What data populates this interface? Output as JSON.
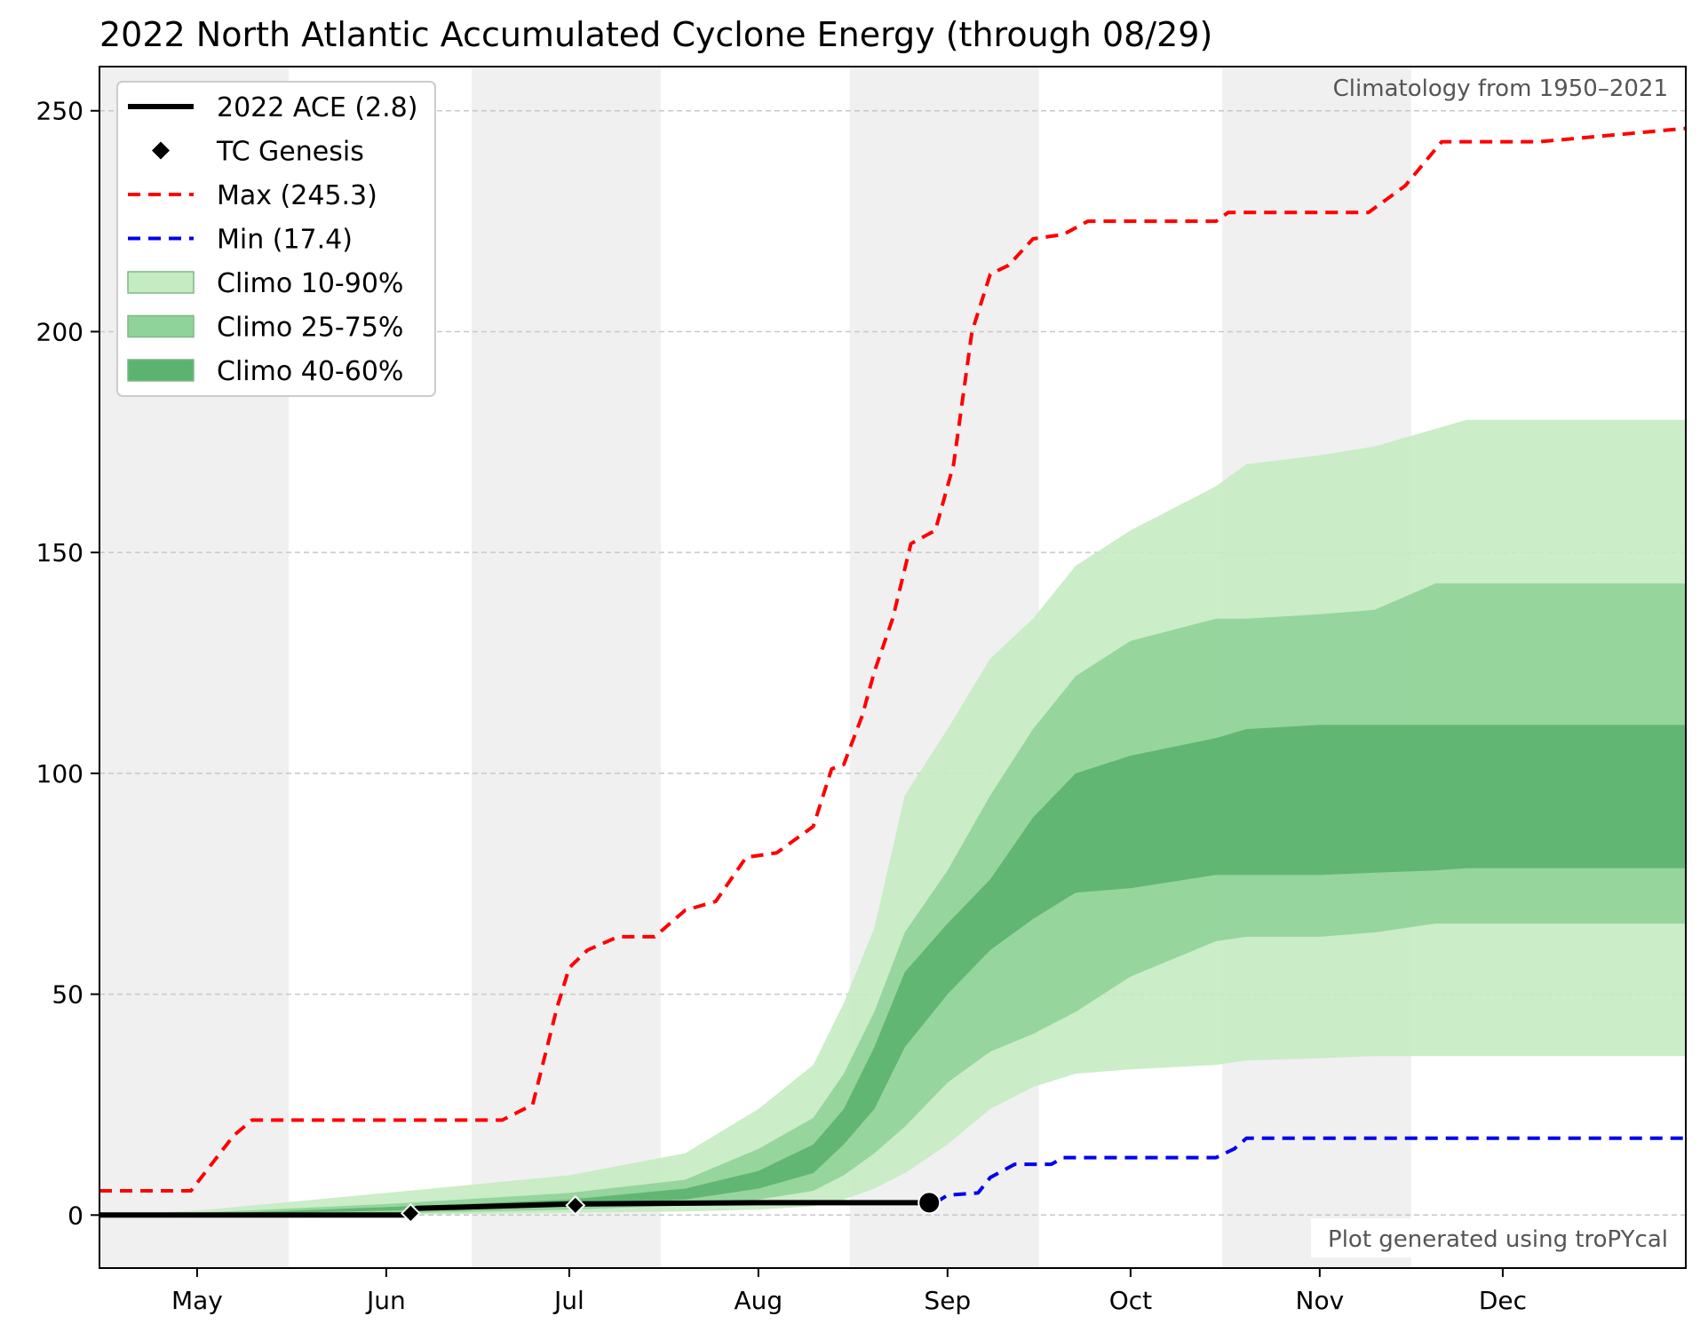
{
  "chart_data": {
    "type": "line",
    "title": "2022 North Atlantic Accumulated Cyclone Energy (through 08/29)",
    "xlabel": "",
    "ylabel": "",
    "x_range": [
      "04-15",
      "12-31"
    ],
    "ylim": [
      -12,
      260
    ],
    "y_ticks": [
      0,
      50,
      100,
      150,
      200,
      250
    ],
    "y_tick_labels": [
      "0",
      "50",
      "100",
      "150",
      "200",
      "250"
    ],
    "x_ticks": [
      "05-01",
      "06-01",
      "07-01",
      "08-01",
      "09-01",
      "10-01",
      "11-01",
      "12-01"
    ],
    "x_tick_labels": [
      "May",
      "Jun",
      "Jul",
      "Aug",
      "Sep",
      "Oct",
      "Nov",
      "Dec"
    ],
    "grid": "horizontal dashed",
    "shaded_month_bands": [
      [
        "04-15",
        "05-16"
      ],
      [
        "06-15",
        "07-16"
      ],
      [
        "08-16",
        "09-16"
      ],
      [
        "10-16",
        "11-16"
      ]
    ],
    "annotation_top_right": "Climatology from 1950–2021",
    "annotation_bottom_right": "Plot generated using troPYcal",
    "legend": {
      "placement": "upper-left",
      "entries": [
        {
          "label": "2022 ACE (2.8)",
          "style": "solid-line",
          "color": "#000000"
        },
        {
          "label": "TC Genesis",
          "style": "diamond-marker",
          "color": "#000000"
        },
        {
          "label": "Max (245.3)",
          "style": "dashed-line",
          "color": "#ff0000"
        },
        {
          "label": "Min (17.4)",
          "style": "dashed-line",
          "color": "#0000ee"
        },
        {
          "label": "Climo 10-90%",
          "style": "fill",
          "color": "#c5ebc2"
        },
        {
          "label": "Climo 25-75%",
          "style": "fill",
          "color": "#90d398"
        },
        {
          "label": "Climo 40-60%",
          "style": "fill",
          "color": "#5cb36f"
        }
      ]
    },
    "series": [
      {
        "name": "2022 ACE (2.8)",
        "color": "#000000",
        "x": [
          "04-15",
          "06-05",
          "06-06",
          "07-01",
          "08-01",
          "08-29"
        ],
        "y": [
          0,
          0,
          1.5,
          2.5,
          2.8,
          2.8
        ]
      },
      {
        "name": "TC Genesis",
        "color": "#000000",
        "marker": "diamond",
        "x": [
          "06-05",
          "07-02"
        ],
        "y": [
          0.4,
          2.2
        ]
      },
      {
        "name": "Max (245.3)",
        "color": "#ff0000",
        "dash": "dashed",
        "x": [
          "04-15",
          "04-30",
          "05-07",
          "05-10",
          "06-20",
          "06-25",
          "06-29",
          "07-01",
          "07-04",
          "07-09",
          "07-15",
          "07-20",
          "07-25",
          "07-30",
          "08-04",
          "08-10",
          "08-13",
          "08-15",
          "08-18",
          "08-20",
          "08-23",
          "08-26",
          "08-30",
          "09-02",
          "09-05",
          "09-08",
          "09-11",
          "09-15",
          "09-20",
          "09-24",
          "10-01",
          "10-15",
          "10-17",
          "10-31",
          "11-09",
          "11-15",
          "11-21",
          "12-07",
          "12-31"
        ],
        "y": [
          5.5,
          5.5,
          18,
          21.5,
          21.5,
          25,
          47,
          56,
          60,
          63,
          63,
          69,
          71,
          81,
          82,
          88,
          101,
          102,
          113,
          123,
          135,
          152,
          155,
          170,
          200,
          213,
          215,
          221,
          222,
          225,
          225,
          225,
          227,
          227,
          227,
          233,
          243,
          243,
          246
        ]
      },
      {
        "name": "Min (17.4)",
        "color": "#0000ee",
        "dash": "dashed",
        "x": [
          "08-30",
          "09-01",
          "09-06",
          "09-08",
          "09-12",
          "09-14",
          "09-18",
          "09-20",
          "10-15",
          "10-18",
          "10-20",
          "11-01",
          "12-31"
        ],
        "y": [
          2.8,
          4.5,
          5,
          8.5,
          11.5,
          11.5,
          11.5,
          13,
          13,
          15,
          17.4,
          17.4,
          17.4
        ]
      }
    ],
    "bands": [
      {
        "name": "Climo 10-90%",
        "color": "#c5ebc2",
        "x": [
          "04-15",
          "05-01",
          "06-01",
          "07-01",
          "07-20",
          "08-01",
          "08-10",
          "08-15",
          "08-20",
          "08-25",
          "09-01",
          "09-08",
          "09-15",
          "09-22",
          "10-01",
          "10-15",
          "10-20",
          "11-01",
          "11-10",
          "11-20",
          "11-25",
          "12-31"
        ],
        "low": [
          0,
          0,
          0,
          0.5,
          0.8,
          1.2,
          2,
          3.5,
          6,
          9.5,
          16,
          24,
          29,
          32,
          33,
          34,
          35,
          35.5,
          36,
          36,
          36,
          36
        ],
        "high": [
          0,
          1,
          5,
          9,
          14,
          24,
          34,
          48,
          65,
          95,
          110,
          126,
          135,
          147,
          155,
          165,
          170,
          172,
          174,
          178,
          180,
          180
        ]
      },
      {
        "name": "Climo 25-75%",
        "color": "#90d398",
        "x": [
          "04-15",
          "05-01",
          "06-01",
          "07-01",
          "07-20",
          "08-01",
          "08-10",
          "08-15",
          "08-20",
          "08-25",
          "09-01",
          "09-08",
          "09-15",
          "09-22",
          "10-01",
          "10-15",
          "10-20",
          "11-01",
          "11-10",
          "11-20",
          "11-25",
          "12-31"
        ],
        "low": [
          0,
          0,
          0.3,
          1.2,
          2.2,
          3.5,
          5.5,
          9,
          14,
          20,
          30,
          37,
          41,
          46,
          54,
          62,
          63,
          63,
          64,
          66,
          66,
          66
        ],
        "high": [
          0,
          0.5,
          2.5,
          5,
          8,
          15,
          22,
          32,
          46,
          64,
          78,
          95,
          110,
          122,
          130,
          135,
          135,
          136,
          137,
          143,
          143,
          143
        ]
      },
      {
        "name": "Climo 40-60%",
        "color": "#5cb36f",
        "x": [
          "04-15",
          "05-01",
          "06-01",
          "07-01",
          "07-20",
          "08-01",
          "08-10",
          "08-15",
          "08-20",
          "08-25",
          "09-01",
          "09-08",
          "09-15",
          "09-22",
          "10-01",
          "10-15",
          "10-20",
          "11-01",
          "11-10",
          "11-20",
          "11-25",
          "12-31"
        ],
        "low": [
          0,
          0,
          1,
          2,
          3.5,
          6,
          9.5,
          16,
          24,
          38,
          50,
          60,
          67,
          73,
          74,
          77,
          77,
          77,
          77.5,
          78,
          78.5,
          78.5
        ],
        "high": [
          0,
          0.2,
          1.8,
          3.5,
          6,
          10,
          16,
          24,
          38,
          55,
          66,
          76,
          90,
          100,
          104,
          108,
          110,
          111,
          111,
          111,
          111,
          111
        ]
      }
    ],
    "end_marker": {
      "x": "08-29",
      "y": 2.8
    }
  }
}
